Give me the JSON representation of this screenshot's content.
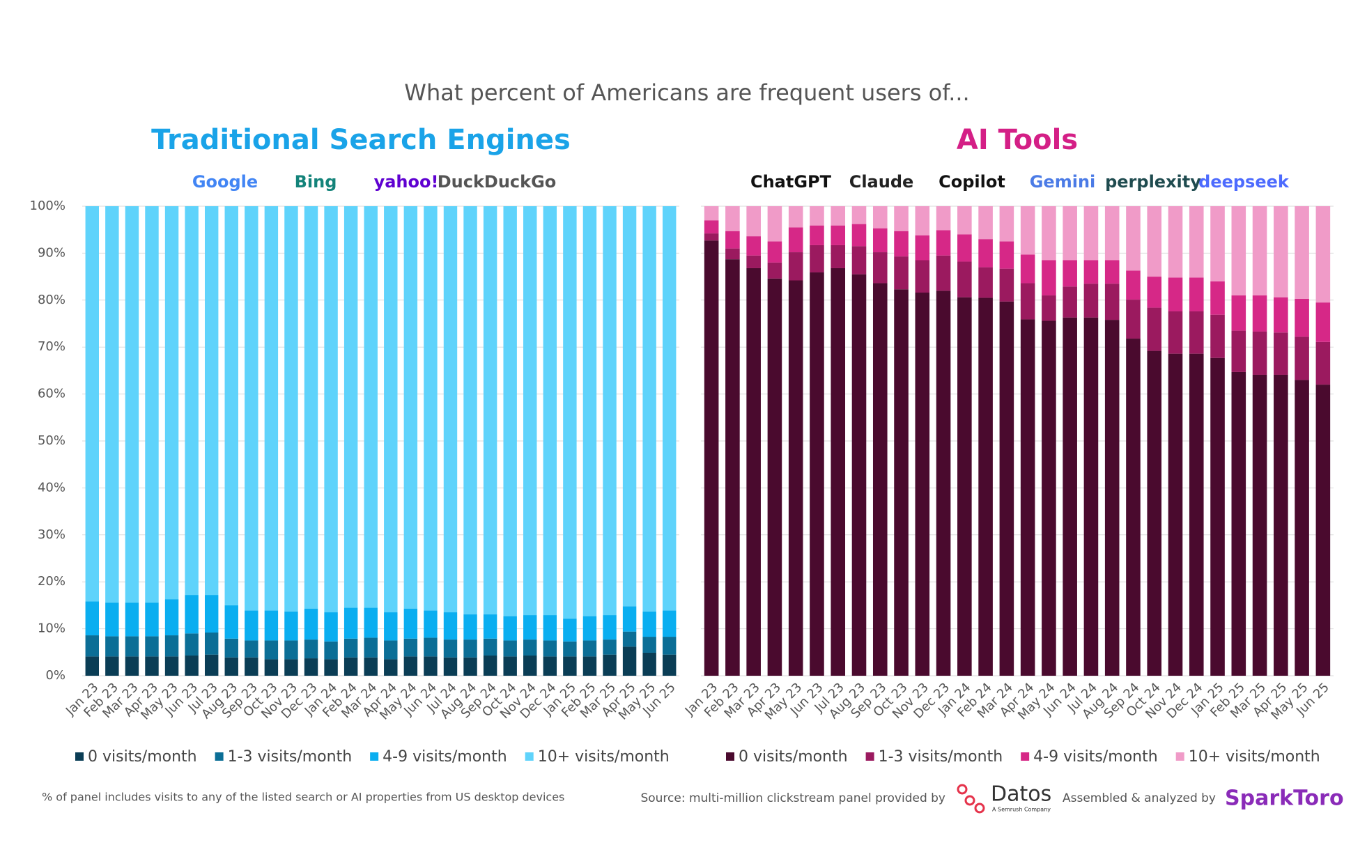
{
  "title": "What percent of Americans are frequent users of...",
  "chart_data": [
    {
      "type": "stacked_bar",
      "title": "Traditional Search Engines",
      "title_color": "#1aa3e8",
      "logos": [
        {
          "name": "Google",
          "color": "#4285f4"
        },
        {
          "name": "Bing",
          "color": "#13837a"
        },
        {
          "name": "yahoo!",
          "color": "#5f01d1"
        },
        {
          "name": "DuckDuckGo",
          "color": "#555555"
        }
      ],
      "categories": [
        "Jan 23",
        "Feb 23",
        "Mar 23",
        "Apr 23",
        "May 23",
        "Jun 23",
        "Jul 23",
        "Aug 23",
        "Sep 23",
        "Oct 23",
        "Nov 23",
        "Dec 23",
        "Jan 24",
        "Feb 24",
        "Mar 24",
        "Apr 24",
        "May 24",
        "Jun 24",
        "Jul 24",
        "Aug 24",
        "Sep 24",
        "Oct 24",
        "Nov 24",
        "Dec 24",
        "Jan 25",
        "Feb 25",
        "Mar 25",
        "Apr 25",
        "May 25",
        "Jun 25"
      ],
      "series": [
        {
          "name": "0 visits/month",
          "color": "#0a3d55",
          "values": [
            4.1,
            4.1,
            4.1,
            4.1,
            4.1,
            4.3,
            4.5,
            3.9,
            3.9,
            3.5,
            3.5,
            3.7,
            3.5,
            3.9,
            3.9,
            3.5,
            4.1,
            4.1,
            3.9,
            3.9,
            4.3,
            4.1,
            4.3,
            4.1,
            4.1,
            4.1,
            4.5,
            6.2,
            4.9,
            4.5
          ]
        },
        {
          "name": "1-3 visits/month",
          "color": "#0b6e96",
          "values": [
            4.5,
            4.3,
            4.3,
            4.3,
            4.5,
            4.7,
            4.7,
            4.0,
            3.6,
            4.0,
            4.0,
            4.0,
            3.8,
            4.0,
            4.2,
            4.0,
            3.8,
            4.0,
            3.8,
            3.8,
            3.6,
            3.4,
            3.4,
            3.4,
            3.2,
            3.4,
            3.2,
            3.2,
            3.4,
            3.8
          ]
        },
        {
          "name": "4-9 visits/month",
          "color": "#0aaef0",
          "values": [
            7.2,
            7.2,
            7.2,
            7.2,
            7.7,
            8.2,
            8.0,
            7.1,
            6.4,
            6.4,
            6.2,
            6.6,
            6.2,
            6.6,
            6.4,
            6.0,
            6.4,
            5.8,
            5.8,
            5.4,
            5.2,
            5.2,
            5.2,
            5.4,
            4.9,
            5.2,
            5.2,
            5.4,
            5.4,
            5.6
          ]
        },
        {
          "name": "10+ visits/month",
          "color": "#5fd3fb",
          "values": [
            84.2,
            84.4,
            84.4,
            84.4,
            83.7,
            82.8,
            82.8,
            85.0,
            86.1,
            86.1,
            86.3,
            85.7,
            86.5,
            85.5,
            85.5,
            86.5,
            85.7,
            86.1,
            86.5,
            86.9,
            86.9,
            87.3,
            87.1,
            87.1,
            87.8,
            87.3,
            87.1,
            85.2,
            86.3,
            86.1
          ]
        }
      ],
      "ylim": [
        0,
        100
      ],
      "yticks": [
        {
          "value": 0,
          "label": "0%"
        },
        {
          "value": 10,
          "label": "10%"
        },
        {
          "value": 20,
          "label": "20%"
        },
        {
          "value": 30,
          "label": "30%"
        },
        {
          "value": 40,
          "label": "40%"
        },
        {
          "value": 50,
          "label": "50%"
        },
        {
          "value": 60,
          "label": "60%"
        },
        {
          "value": 70,
          "label": "70%"
        },
        {
          "value": 80,
          "label": "80%"
        },
        {
          "value": 90,
          "label": "90%"
        },
        {
          "value": 100,
          "label": "100%"
        }
      ],
      "grid": true
    },
    {
      "type": "stacked_bar",
      "title": "AI Tools",
      "title_color": "#d41f86",
      "logos": [
        {
          "name": "ChatGPT",
          "color": "#111111"
        },
        {
          "name": "Claude",
          "color": "#222222"
        },
        {
          "name": "Copilot",
          "color": "#111111"
        },
        {
          "name": "Gemini",
          "color": "#4b7be6"
        },
        {
          "name": "perplexity",
          "color": "#1f4b4f"
        },
        {
          "name": "deepseek",
          "color": "#4d6bfe"
        }
      ],
      "categories": [
        "Jan 23",
        "Feb 23",
        "Mar 23",
        "Apr 23",
        "May 23",
        "Jun 23",
        "Jul 23",
        "Aug 23",
        "Sep 23",
        "Oct 23",
        "Nov 23",
        "Dec 23",
        "Jan 24",
        "Feb 24",
        "Mar 24",
        "Apr 24",
        "May 24",
        "Jun 24",
        "Jul 24",
        "Aug 24",
        "Sep 24",
        "Oct 24",
        "Nov 24",
        "Dec 24",
        "Jan 25",
        "Feb 25",
        "Mar 25",
        "Apr 25",
        "May 25",
        "Jun 25"
      ],
      "series": [
        {
          "name": "0 visits/month",
          "color": "#4a0a2e",
          "values": [
            92.7,
            88.7,
            86.8,
            84.6,
            84.2,
            85.9,
            86.8,
            85.5,
            83.6,
            82.3,
            81.6,
            82.0,
            80.6,
            80.5,
            79.7,
            75.9,
            75.6,
            76.3,
            76.3,
            75.8,
            71.8,
            69.2,
            68.6,
            68.6,
            67.7,
            64.7,
            64.1,
            64.1,
            63.0,
            62.0
          ]
        },
        {
          "name": "1-3 visits/month",
          "color": "#9b1a5f",
          "values": [
            1.5,
            2.3,
            2.7,
            3.4,
            6.0,
            5.8,
            4.9,
            6.0,
            6.6,
            7.0,
            6.9,
            7.5,
            7.6,
            6.5,
            7.0,
            7.7,
            5.4,
            6.6,
            7.2,
            7.7,
            8.3,
            9.2,
            9.0,
            9.0,
            9.2,
            8.8,
            9.2,
            9.0,
            9.2,
            9.1
          ]
        },
        {
          "name": "4-9 visits/month",
          "color": "#d62887",
          "values": [
            2.8,
            3.7,
            4.1,
            4.5,
            5.3,
            4.2,
            4.2,
            4.7,
            5.1,
            5.4,
            5.3,
            5.4,
            5.8,
            6.0,
            5.8,
            6.1,
            7.5,
            5.6,
            5.0,
            5.0,
            6.2,
            6.6,
            7.2,
            7.2,
            7.1,
            7.5,
            7.7,
            7.5,
            8.1,
            8.4
          ]
        },
        {
          "name": "10+ visits/month",
          "color": "#f09bc8",
          "values": [
            3.0,
            5.3,
            6.4,
            7.5,
            4.5,
            4.1,
            4.1,
            3.8,
            4.7,
            5.3,
            6.2,
            5.1,
            6.0,
            7.0,
            7.5,
            10.3,
            11.5,
            11.5,
            11.5,
            11.5,
            13.7,
            15.0,
            15.2,
            15.2,
            16.0,
            19.0,
            19.0,
            19.4,
            19.7,
            20.5
          ]
        }
      ],
      "ylim": [
        0,
        100
      ],
      "grid": true
    }
  ],
  "footer": {
    "note": "% of panel includes visits to any of the listed search or AI properties from US desktop devices",
    "source": "Source: multi-million clickstream panel provided by",
    "datos": "Datos",
    "datos_sub": "A Semrush Company",
    "assembled": "Assembled & analyzed by",
    "sparktoro": "SparkToro"
  }
}
